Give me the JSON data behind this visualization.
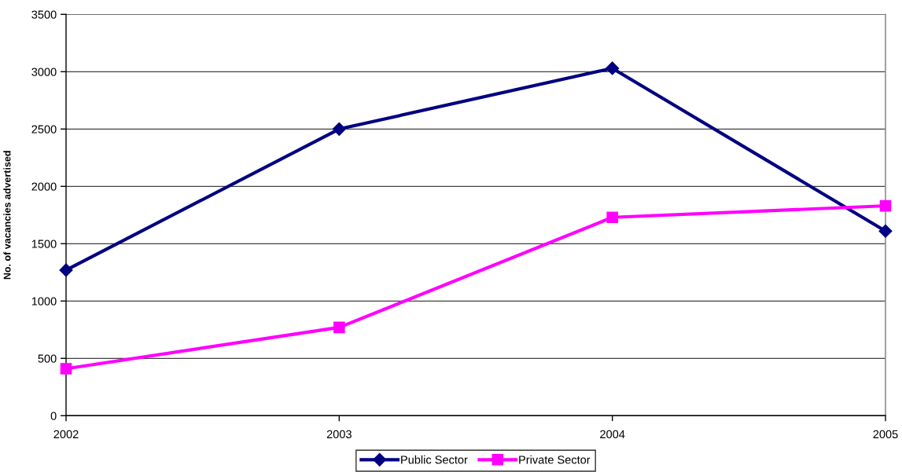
{
  "chart_data": {
    "type": "line",
    "ylabel": "No. of vacancies advertised",
    "x": [
      2002,
      2003,
      2004,
      2005
    ],
    "xlim": [
      2002,
      2005
    ],
    "xticks": [
      2002,
      2003,
      2004,
      2005
    ],
    "ylim": [
      0,
      3500
    ],
    "yticks": [
      0,
      500,
      1000,
      1500,
      2000,
      2500,
      3000,
      3500
    ],
    "grid": "y",
    "legend": "bottom",
    "line_style": "solid",
    "series": [
      {
        "name": "Public Sector",
        "color": "#000080",
        "marker": "diamond",
        "values": [
          1270,
          2500,
          3030,
          1610
        ]
      },
      {
        "name": "Private Sector",
        "color": "#ff00ff",
        "marker": "square",
        "values": [
          410,
          770,
          1730,
          1830
        ]
      }
    ]
  }
}
